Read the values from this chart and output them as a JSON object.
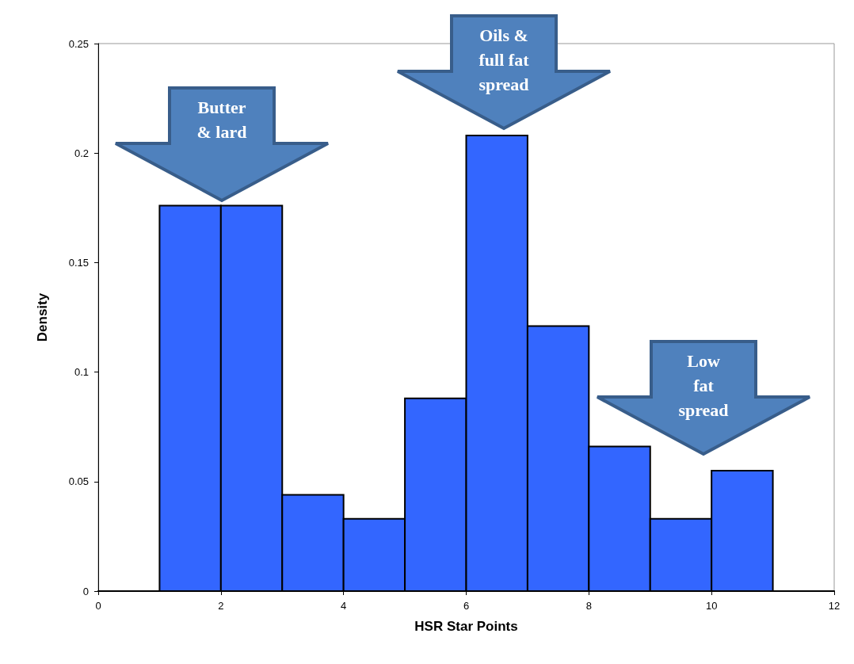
{
  "chart_data": {
    "type": "histogram",
    "xlabel": "HSR Star Points",
    "ylabel": "Density",
    "color": "#3366ff",
    "bins": [
      1,
      2,
      3,
      4,
      5,
      6,
      7,
      8,
      9,
      10,
      11
    ],
    "values": [
      0.176,
      0.176,
      0.044,
      0.033,
      0.088,
      0.208,
      0.121,
      0.066,
      0.033,
      0.055
    ],
    "xlim": [
      0,
      12
    ],
    "xticks": [
      0,
      2,
      4,
      6,
      8,
      10,
      12
    ],
    "ylim": [
      0,
      0.25
    ],
    "yticks": [
      0,
      0.05,
      0.1,
      0.15,
      0.2,
      0.25
    ],
    "grid": false,
    "annotations": [
      "Butter\n& lard",
      "Oils &\nfull fat\nspread",
      "Low\nfat\nspread"
    ]
  }
}
